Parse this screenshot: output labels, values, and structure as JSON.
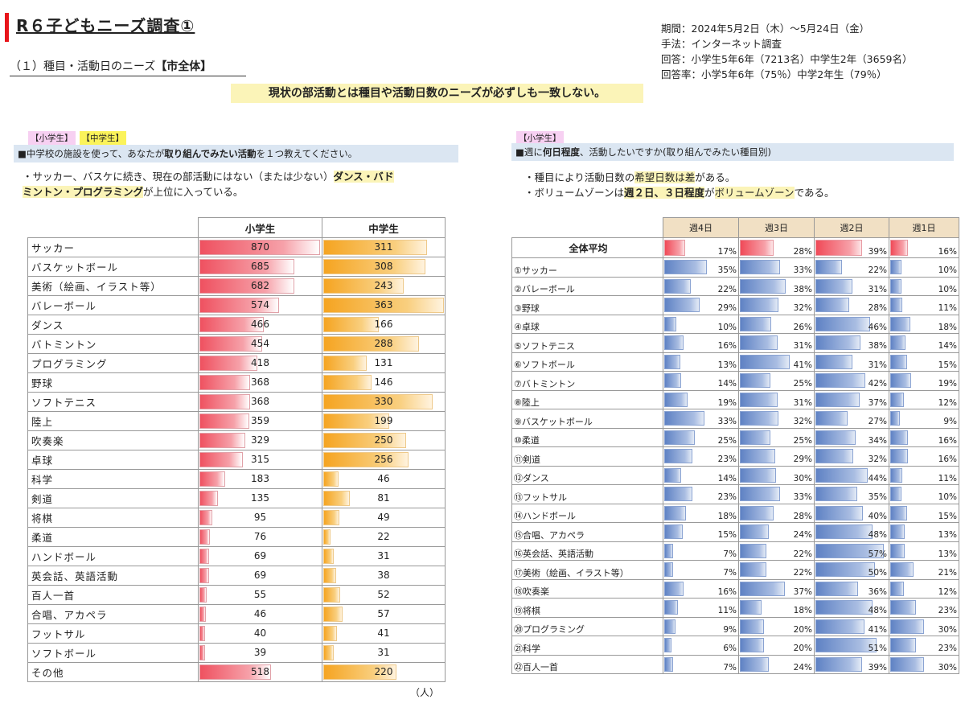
{
  "header": {
    "title": "R６子どもニーズ調査①",
    "subtitle_plain": "（１）種目・活動日のニーズ",
    "subtitle_bold": "【市全体】",
    "info": [
      "期間：2024年5月2日（木）～5月24日（金）",
      "手法：インターネット調査",
      "回答：小学生5年6年（7213名）中学生2年（3659名）",
      "回答率：小学5年6年（75％）中学2年生（79％）"
    ],
    "headline": "現状の部活動とは種目や活動日数のニーズが必ずしも一致しない。"
  },
  "left": {
    "tags": [
      "【小学生】",
      "【中学生】"
    ],
    "question_pre": "■中学校の施設を使って、あなたが",
    "question_bold": "取り組んでみたい活動",
    "question_post": "を１つ教えてください。",
    "note_pre": "・サッカー、バスケに続き、現在の部活動にはない（または少ない）",
    "note_hl1": "ダンス・バド",
    "note_hl2": "ミントン・プログラミング",
    "note_post": "が上位に入っている。",
    "unit": "（人）"
  },
  "right": {
    "tag": "【小学生】",
    "question_pre": "■週に",
    "question_bold": "何日程度",
    "question_post": "、活動したいですか(取り組んでみたい種目別)",
    "note1_pre": "・種目により活動日数の",
    "note1_hl": "希望日数は差",
    "note1_post": "がある。",
    "note2_pre": "・ボリュームゾーンは",
    "note2_hl1": "週２日、３日程度",
    "note2_mid": "が",
    "note2_hl2": "ボリュームゾーン",
    "note2_post": "である。"
  },
  "chart_data": [
    {
      "type": "bar",
      "title": "取り組んでみたい活動",
      "unit": "（人）",
      "categories": [
        "サッカー",
        "バスケットボール",
        "美術（絵画、イラスト等）",
        "バレーボール",
        "ダンス",
        "バトミントン",
        "プログラミング",
        "野球",
        "ソフトテニス",
        "陸上",
        "吹奏楽",
        "卓球",
        "科学",
        "剣道",
        "将棋",
        "柔道",
        "ハンドボール",
        "英会話、英語活動",
        "百人一首",
        "合唱、アカペラ",
        "フットサル",
        "ソフトボール",
        "その他"
      ],
      "series": [
        {
          "name": "小学生",
          "color": "#ef5160",
          "values": [
            870,
            685,
            682,
            574,
            466,
            454,
            418,
            368,
            368,
            359,
            329,
            315,
            183,
            135,
            95,
            76,
            69,
            69,
            55,
            46,
            40,
            39,
            518
          ]
        },
        {
          "name": "中学生",
          "color": "#f5a421",
          "values": [
            311,
            308,
            243,
            363,
            166,
            288,
            131,
            146,
            330,
            199,
            250,
            256,
            46,
            81,
            49,
            22,
            31,
            38,
            52,
            57,
            41,
            31,
            220
          ]
        }
      ]
    },
    {
      "type": "table",
      "title": "週に何日程度、活動したいですか（小学生）",
      "columns": [
        "週4日",
        "週3日",
        "週2日",
        "週1日"
      ],
      "average_label": "全体平均",
      "average": [
        17,
        28,
        39,
        16
      ],
      "rows": [
        {
          "label": "①サッカー",
          "values": [
            35,
            33,
            22,
            10
          ]
        },
        {
          "label": "②バレーボール",
          "values": [
            22,
            38,
            31,
            10
          ]
        },
        {
          "label": "③野球",
          "values": [
            29,
            32,
            28,
            11
          ]
        },
        {
          "label": "④卓球",
          "values": [
            10,
            26,
            46,
            18
          ]
        },
        {
          "label": "⑤ソフトテニス",
          "values": [
            16,
            31,
            38,
            14
          ]
        },
        {
          "label": "⑥ソフトボール",
          "values": [
            13,
            41,
            31,
            15
          ]
        },
        {
          "label": "⑦バトミントン",
          "values": [
            14,
            25,
            42,
            19
          ]
        },
        {
          "label": "⑧陸上",
          "values": [
            19,
            31,
            37,
            12
          ]
        },
        {
          "label": "⑨バスケットボール",
          "values": [
            33,
            32,
            27,
            9
          ]
        },
        {
          "label": "⑩柔道",
          "values": [
            25,
            25,
            34,
            16
          ]
        },
        {
          "label": "⑪剣道",
          "values": [
            23,
            29,
            32,
            16
          ]
        },
        {
          "label": "⑫ダンス",
          "values": [
            14,
            30,
            44,
            11
          ]
        },
        {
          "label": "⑬フットサル",
          "values": [
            23,
            33,
            35,
            10
          ]
        },
        {
          "label": "⑭ハンドボール",
          "values": [
            18,
            28,
            40,
            15
          ]
        },
        {
          "label": "⑮合唱、アカペラ",
          "values": [
            15,
            24,
            48,
            13
          ]
        },
        {
          "label": "⑯英会話、英語活動",
          "values": [
            7,
            22,
            57,
            13
          ]
        },
        {
          "label": "⑰美術（絵画、イラスト等）",
          "values": [
            7,
            22,
            50,
            21
          ]
        },
        {
          "label": "⑱吹奏楽",
          "values": [
            16,
            37,
            36,
            12
          ]
        },
        {
          "label": "⑲将棋",
          "values": [
            11,
            18,
            48,
            23
          ]
        },
        {
          "label": "⑳プログラミング",
          "values": [
            9,
            20,
            41,
            30
          ]
        },
        {
          "label": "㉑科学",
          "values": [
            6,
            20,
            51,
            23
          ]
        },
        {
          "label": "㉒百人一首",
          "values": [
            7,
            24,
            39,
            30
          ]
        }
      ]
    }
  ]
}
